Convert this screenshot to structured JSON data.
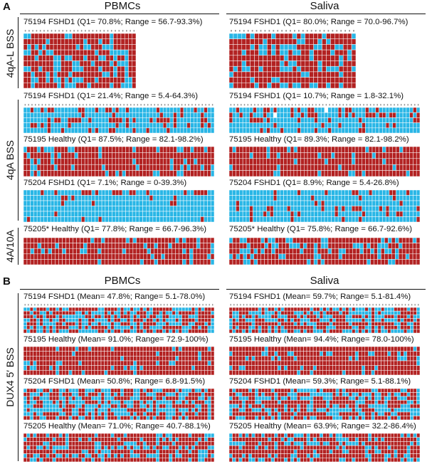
{
  "panel_letters": {
    "a": "A",
    "b": "B"
  },
  "panel_a": {
    "col_headers": {
      "left": "PBMCs",
      "right": "Saliva"
    },
    "row_labels": {
      "r1": "4qA-L BSS",
      "r2": "4qA BSS",
      "r3": "4A/10A"
    },
    "captions": {
      "l1": "75194 FSHD1 (Q1= 70.8%; Range = 56.7-93.3%)",
      "r1": "75194 FSHD1 (Q1= 80.0%; Range = 70.0-96.7%)",
      "l2": "75194 FSHD1 (Q1= 21.4%; Range = 5.4-64.3%)",
      "r2": "75194 FSHD1 (Q1= 10.7%; Range = 1.8-32.1%)",
      "l3": "75195 Healthy (Q1= 87.5%; Range = 82.1-98.2%)",
      "r3": "75195 Healthy (Q1= 89.3%; Range = 82.1-98.2%)",
      "l4": "75204 FSHD1 (Q1= 7.1%; Range = 0-39.3%)",
      "r4": "75204 FSHD1 (Q1= 8.9%; Range = 5.4-26.8%)",
      "l5": "75205* Healthy (Q1= 77.8%; Range = 66.7-96.3%)",
      "r5": "75205* Healthy (Q1= 75.8%; Range = 66.7-92.6%)"
    }
  },
  "panel_b": {
    "col_headers": {
      "left": "PBMCs",
      "right": "Saliva"
    },
    "row_label": "DUX4 5′ BSS",
    "captions": {
      "l1": "75194 FSHD1 (Mean= 47.8%; Range= 5.1-78.0%)",
      "r1": "75194 FSHD1 (Mean= 59.7%; Range= 5.1-81.4%)",
      "l2": "75195 Healthy (Mean= 91.0%; Range= 72.9-100%)",
      "r2": "75195 Healthy (Mean= 94.4%; Range= 78.0-100%)",
      "l3": "75204 FSHD1 (Mean= 50.8%; Range= 6.8-91.5%)",
      "r3": "75204 FSHD1 (Mean= 59.3%; Range= 5.1-88.1%)",
      "l4": "75205 Healthy (Mean= 71.0%; Range= 40.7-88.1%)",
      "r4": "75205 Healthy (Mean= 63.9%; Range= 32.2-86.4%)"
    }
  },
  "colors": {
    "methylated": "#b22222",
    "unmethylated": "#29b6e6",
    "missing": "#ffffff",
    "grid_line": "#ffffff",
    "text": "#111111"
  },
  "legend_meaning": {
    "methylated": "red",
    "unmethylated": "blue"
  },
  "grids": [
    {
      "id": "a-l1",
      "methylated_fraction": 0.708,
      "missing_cells": 0
    },
    {
      "id": "a-r1",
      "methylated_fraction": 0.8,
      "missing_cells": 0
    },
    {
      "id": "a-l2",
      "methylated_fraction": 0.214,
      "missing_cells": 0
    },
    {
      "id": "a-r2",
      "methylated_fraction": 0.107,
      "missing_cells": 2
    },
    {
      "id": "a-l3",
      "methylated_fraction": 0.875,
      "missing_cells": 2
    },
    {
      "id": "a-r3",
      "methylated_fraction": 0.893,
      "missing_cells": 0
    },
    {
      "id": "a-l4",
      "methylated_fraction": 0.071,
      "missing_cells": 0
    },
    {
      "id": "a-r4",
      "methylated_fraction": 0.089,
      "missing_cells": 0
    },
    {
      "id": "a-l5",
      "methylated_fraction": 0.778,
      "missing_cells": 0
    },
    {
      "id": "a-r5",
      "methylated_fraction": 0.758,
      "missing_cells": 2
    },
    {
      "id": "b-l1",
      "methylated_fraction": 0.478,
      "missing_cells": 0
    },
    {
      "id": "b-r1",
      "methylated_fraction": 0.597,
      "missing_cells": 0
    },
    {
      "id": "b-l2",
      "methylated_fraction": 0.91,
      "missing_cells": 0
    },
    {
      "id": "b-r2",
      "methylated_fraction": 0.944,
      "missing_cells": 0
    },
    {
      "id": "b-l3",
      "methylated_fraction": 0.508,
      "missing_cells": 0
    },
    {
      "id": "b-r3",
      "methylated_fraction": 0.593,
      "missing_cells": 0
    },
    {
      "id": "b-l4",
      "methylated_fraction": 0.71,
      "missing_cells": 0
    },
    {
      "id": "b-r4",
      "methylated_fraction": 0.639,
      "missing_cells": 0
    }
  ]
}
